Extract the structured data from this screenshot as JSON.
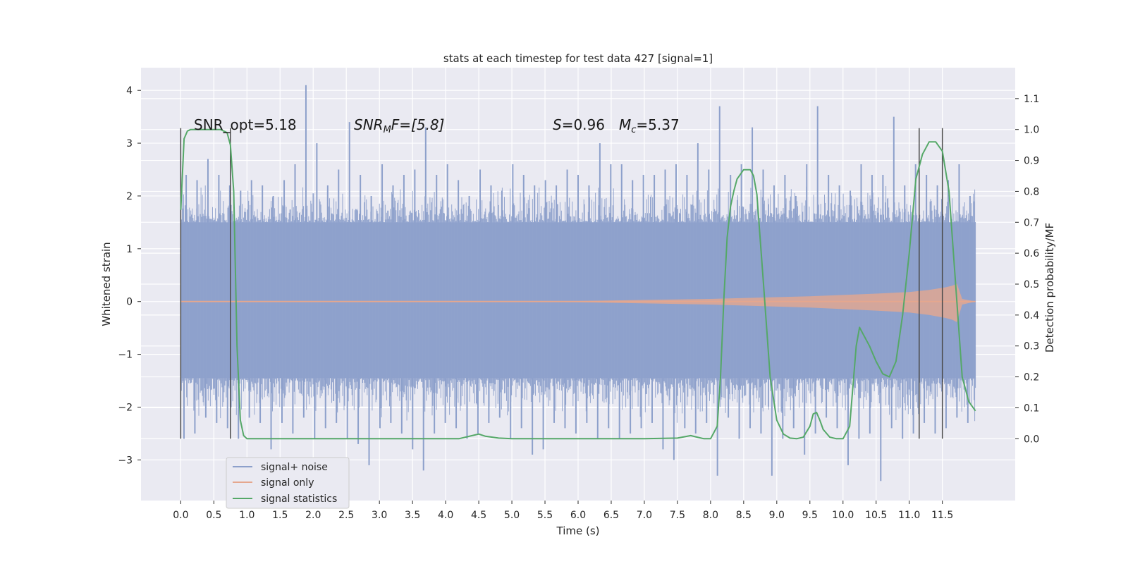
{
  "chart_data": {
    "type": "line",
    "title": "stats at each timestep for test data 427 [signal=1]",
    "xlabel": "Time (s)",
    "ylabel": "Whitened strain",
    "ylabel_right": "Detection probability/MF",
    "xlim": [
      -0.6,
      12.6
    ],
    "ylim": [
      -3.77,
      4.43
    ],
    "ylim_right": [
      -0.2,
      1.2
    ],
    "grid": true,
    "legend_position": "lower-left",
    "x_ticks": [
      "0.0",
      "0.5",
      "1.0",
      "1.5",
      "2.0",
      "2.5",
      "3.0",
      "3.5",
      "4.0",
      "4.5",
      "5.0",
      "5.5",
      "6.0",
      "6.5",
      "7.0",
      "7.5",
      "8.0",
      "8.5",
      "9.0",
      "9.5",
      "10.0",
      "10.5",
      "11.0",
      "11.5"
    ],
    "y_ticks_left": [
      4,
      3,
      2,
      1,
      0,
      -1,
      -2,
      -3
    ],
    "y_ticks_left_labels": [
      "4",
      "3",
      "2",
      "1",
      "0",
      "−1",
      "−2",
      "−3"
    ],
    "y_ticks_right": [
      1.1,
      1.0,
      0.9,
      0.8,
      0.7,
      0.6,
      0.5,
      0.4,
      0.3,
      0.2,
      0.1,
      0.0
    ],
    "y_ticks_right_labels": [
      "1.1",
      "1.0",
      "0.9",
      "0.8",
      "0.7",
      "0.6",
      "0.5",
      "0.4",
      "0.3",
      "0.2",
      "0.1",
      "0.0"
    ],
    "annotations": {
      "snr_opt": "SNR_opt=5.18",
      "snr_mf_main": "SNR",
      "snr_mf_sub": "M",
      "snr_mf_rest": "F=[5.8]",
      "s_main": "S",
      "s_rest": "=0.96",
      "mc_main": "M",
      "mc_sub": "c",
      "mc_rest": "=5.37"
    },
    "series": [
      {
        "name": "signal+ noise",
        "color": "#8da0cb",
        "x_range": [
          0.0,
          12.0
        ],
        "envelope": {
          "core_high": 1.5,
          "core_low": -1.45,
          "spike_high": [
            2.4,
            2.3,
            2.7,
            2.4,
            2.2,
            2.1,
            2.3,
            2.2,
            2.0,
            2.3,
            2.6,
            4.1,
            3.0,
            2.2,
            2.5,
            3.4,
            2.4,
            2.0,
            2.6,
            2.2,
            2.4,
            2.5,
            3.3,
            2.4,
            2.6,
            2.3,
            2.0,
            2.5,
            2.2,
            2.1,
            2.6,
            2.4,
            2.2,
            2.3,
            2.2,
            2.5,
            2.4,
            2.2,
            3.0,
            2.6,
            2.6,
            2.3,
            2.4,
            2.4,
            2.5,
            2.6,
            2.4,
            3.0,
            2.5,
            3.7,
            2.4,
            2.6,
            3.3,
            2.5,
            2.2,
            2.4,
            2.0,
            2.6,
            3.7,
            2.4,
            2.2,
            2.1,
            2.6,
            2.4,
            2.4,
            3.5,
            2.2,
            2.6,
            2.4,
            2.2,
            2.3,
            2.6,
            2.0
          ],
          "spike_low": [
            -2.6,
            -2.5,
            -2.2,
            -2.3,
            -2.4,
            -2.6,
            -2.2,
            -2.3,
            -2.8,
            -2.3,
            -2.5,
            -2.2,
            -2.6,
            -2.4,
            -2.3,
            -2.6,
            -2.7,
            -3.1,
            -2.4,
            -2.3,
            -2.5,
            -2.8,
            -3.2,
            -2.5,
            -2.3,
            -2.4,
            -2.6,
            -2.5,
            -2.3,
            -2.2,
            -2.6,
            -2.4,
            -2.9,
            -2.8,
            -2.3,
            -2.4,
            -2.5,
            -2.3,
            -2.6,
            -2.4,
            -2.6,
            -2.5,
            -2.4,
            -2.3,
            -2.8,
            -3.0,
            -2.4,
            -2.5,
            -2.3,
            -3.3,
            -2.2,
            -2.6,
            -2.4,
            -2.5,
            -3.3,
            -2.6,
            -2.4,
            -2.9,
            -2.5,
            -2.2,
            -2.4,
            -3.1,
            -2.6,
            -2.5,
            -3.4,
            -2.4,
            -2.6,
            -2.5,
            -2.3,
            -2.5,
            -2.4,
            -2.2,
            -2.3
          ]
        }
      },
      {
        "name": "signal only",
        "color": "#e5a78e",
        "x": [
          0.0,
          6.0,
          8.0,
          9.5,
          10.5,
          11.0,
          11.3,
          11.55,
          11.65,
          11.72,
          11.8,
          12.0
        ],
        "amplitude": [
          0.0,
          0.01,
          0.05,
          0.1,
          0.15,
          0.18,
          0.22,
          0.27,
          0.3,
          0.34,
          0.05,
          0.0
        ]
      },
      {
        "name": "signal statistics",
        "color": "#55a868",
        "x": [
          0.0,
          0.05,
          0.1,
          0.15,
          0.2,
          0.3,
          0.45,
          0.6,
          0.7,
          0.75,
          0.8,
          0.85,
          0.9,
          0.95,
          1.0,
          1.1,
          1.5,
          2.0,
          3.0,
          4.0,
          4.2,
          4.4,
          4.5,
          4.6,
          4.8,
          5.0,
          6.0,
          7.0,
          7.5,
          7.7,
          7.8,
          7.9,
          8.0,
          8.1,
          8.15,
          8.2,
          8.25,
          8.3,
          8.35,
          8.4,
          8.5,
          8.6,
          8.65,
          8.7,
          8.8,
          8.9,
          9.0,
          9.1,
          9.2,
          9.3,
          9.4,
          9.5,
          9.55,
          9.6,
          9.65,
          9.7,
          9.8,
          9.9,
          10.0,
          10.1,
          10.2,
          10.25,
          10.3,
          10.4,
          10.5,
          10.6,
          10.7,
          10.8,
          10.9,
          11.0,
          11.1,
          11.2,
          11.3,
          11.4,
          11.5,
          11.6,
          11.7,
          11.8,
          11.9,
          12.0
        ],
        "values": [
          0.74,
          0.97,
          0.995,
          1.0,
          1.0,
          1.0,
          1.0,
          1.0,
          0.99,
          0.95,
          0.8,
          0.3,
          0.06,
          0.01,
          0.0,
          0.0,
          0.0,
          0.0,
          0.0,
          0.0,
          0.0,
          0.01,
          0.015,
          0.008,
          0.002,
          0.0,
          0.0,
          0.0,
          0.002,
          0.01,
          0.005,
          0.0,
          0.0,
          0.04,
          0.2,
          0.45,
          0.65,
          0.75,
          0.8,
          0.84,
          0.87,
          0.87,
          0.85,
          0.79,
          0.5,
          0.2,
          0.06,
          0.015,
          0.002,
          0.0,
          0.005,
          0.04,
          0.08,
          0.085,
          0.06,
          0.03,
          0.005,
          0.0,
          0.0,
          0.04,
          0.3,
          0.36,
          0.34,
          0.3,
          0.25,
          0.21,
          0.2,
          0.25,
          0.4,
          0.6,
          0.84,
          0.92,
          0.96,
          0.96,
          0.93,
          0.8,
          0.5,
          0.2,
          0.12,
          0.09
        ]
      }
    ],
    "vertical_markers": [
      0.0,
      0.75,
      11.15,
      11.5
    ]
  }
}
